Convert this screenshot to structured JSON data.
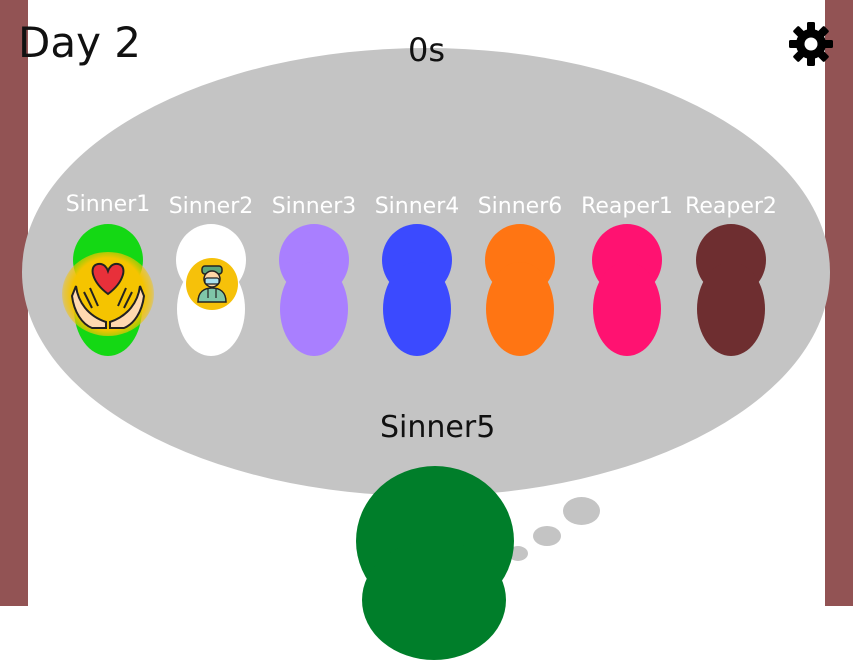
{
  "hud": {
    "day_label": "Day 2",
    "timer": "0s",
    "settings_icon": "gear-icon"
  },
  "players": [
    {
      "name": "Sinner1",
      "color": "#14d814",
      "badge": "healing-hands-heart-icon"
    },
    {
      "name": "Sinner2",
      "color": "#ffffff",
      "badge": "doctor-icon"
    },
    {
      "name": "Sinner3",
      "color": "#a97fff"
    },
    {
      "name": "Sinner4",
      "color": "#3b4aff"
    },
    {
      "name": "Sinner6",
      "color": "#ff7513"
    },
    {
      "name": "Reaper1",
      "color": "#ff1271"
    },
    {
      "name": "Reaper2",
      "color": "#6e2e30"
    }
  ],
  "self": {
    "name": "Sinner5",
    "color": "#007e2a"
  },
  "colors": {
    "border": "#925354",
    "table": "#c4c4c4",
    "badge": "#f5c400"
  }
}
